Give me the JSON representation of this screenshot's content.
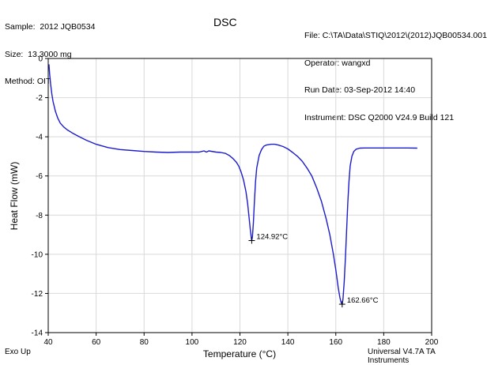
{
  "header": {
    "sample": "Sample:  2012 JQB0534",
    "size": "Size:  13.3000 mg",
    "method": "Method: OIT",
    "file": "File: C:\\TA\\Data\\STIQ\\2012\\(2012)JQB00534.001",
    "operator": "Operator: wangxd",
    "run_date": "Run Date: 03-Sep-2012 14:40",
    "instrument": "Instrument: DSC Q2000 V24.9 Build 121"
  },
  "footer": {
    "left": "Exo Up",
    "right": "Universal V4.7A TA Instruments"
  },
  "chart_data": {
    "type": "line",
    "title": "DSC",
    "xlabel": "Temperature (°C)",
    "ylabel": "Heat Flow (mW)",
    "xlim": [
      40,
      200
    ],
    "ylim": [
      -14,
      0
    ],
    "xticks": [
      40,
      60,
      80,
      100,
      120,
      140,
      160,
      180,
      200
    ],
    "yticks": [
      0,
      -2,
      -4,
      -6,
      -8,
      -10,
      -12,
      -14
    ],
    "grid": true,
    "line_color": "#1c1ccc",
    "series": [
      {
        "x": [
          40.3,
          40.6,
          41.0,
          41.5,
          42.0,
          43.0,
          44.0,
          45.0,
          46.5,
          48.0,
          50.0,
          53.0,
          56.0,
          60.0,
          65.0,
          70.0,
          75.0,
          80.0,
          85.0,
          90.0,
          95.0,
          100.0,
          103.0,
          105.0,
          106.0,
          107.0,
          110.0,
          112.0,
          114.0,
          115.5,
          117.0,
          118.5,
          119.5,
          120.5,
          121.5,
          122.5,
          123.2,
          123.8,
          124.3,
          124.7,
          124.92,
          125.2,
          125.6,
          126.0,
          126.5,
          127.0,
          128.0,
          129.0,
          130.0,
          131.0,
          132.0,
          133.0,
          134.5,
          136.0,
          138.0,
          140.0,
          142.0,
          144.0,
          146.0,
          148.0,
          150.0,
          152.0,
          154.0,
          156.0,
          157.5,
          159.0,
          160.0,
          161.0,
          161.7,
          162.2,
          162.66,
          163.0,
          163.5,
          164.0,
          164.5,
          165.0,
          165.5,
          166.0,
          166.7,
          167.5,
          168.5,
          170.0,
          172.0,
          175.0,
          180.0,
          185.0,
          190.0,
          194.0
        ],
        "y": [
          -0.3,
          -0.8,
          -1.3,
          -1.8,
          -2.2,
          -2.7,
          -3.05,
          -3.3,
          -3.5,
          -3.65,
          -3.8,
          -4.0,
          -4.18,
          -4.38,
          -4.55,
          -4.65,
          -4.7,
          -4.75,
          -4.78,
          -4.8,
          -4.78,
          -4.78,
          -4.78,
          -4.72,
          -4.78,
          -4.72,
          -4.78,
          -4.8,
          -4.85,
          -4.95,
          -5.1,
          -5.3,
          -5.5,
          -5.8,
          -6.2,
          -6.8,
          -7.4,
          -8.1,
          -8.7,
          -9.1,
          -9.3,
          -9.1,
          -8.4,
          -7.4,
          -6.3,
          -5.6,
          -4.95,
          -4.65,
          -4.48,
          -4.42,
          -4.4,
          -4.38,
          -4.38,
          -4.42,
          -4.5,
          -4.62,
          -4.8,
          -5.0,
          -5.25,
          -5.6,
          -6.0,
          -6.6,
          -7.3,
          -8.2,
          -9.0,
          -10.0,
          -10.8,
          -11.7,
          -12.2,
          -12.45,
          -12.55,
          -12.3,
          -11.4,
          -10.2,
          -8.8,
          -7.4,
          -6.3,
          -5.5,
          -5.0,
          -4.75,
          -4.63,
          -4.58,
          -4.57,
          -4.57,
          -4.57,
          -4.57,
          -4.57,
          -4.58
        ]
      }
    ],
    "annotations": [
      {
        "x": 124.92,
        "y": -9.3,
        "label": "124.92°C"
      },
      {
        "x": 162.66,
        "y": -12.55,
        "label": "162.66°C"
      }
    ]
  }
}
